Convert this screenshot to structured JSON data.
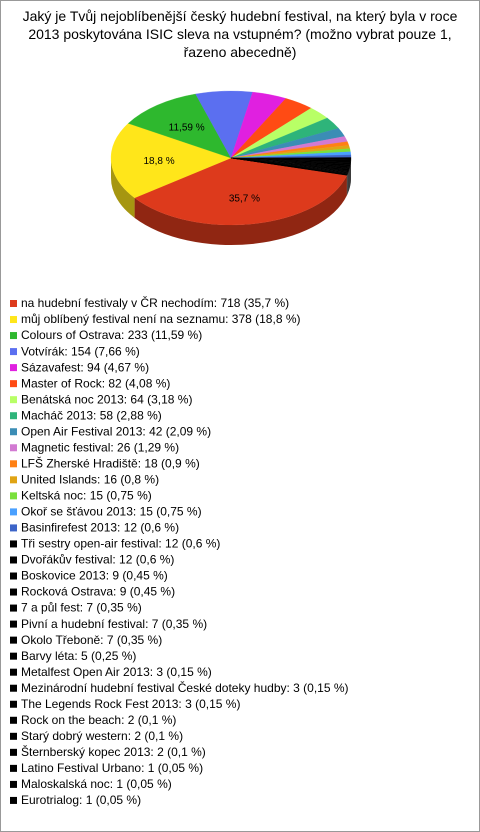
{
  "chart_data": {
    "type": "pie",
    "title": "Jaký je Tvůj nejoblíbenější český hudební festival, na který byla v roce 2013 poskytována ISIC sleva na vstupném? (možno vybrat pouze 1, řazeno abecedně)",
    "categories": [
      "na hudební festivaly v ČR nechodím: 718 (35,7 %)",
      "můj oblíbený festival není na seznamu: 378 (18,8 %)",
      "Colours of Ostrava: 233 (11,59 %)",
      "Votvírák: 154 (7,66 %)",
      "Sázavafest: 94 (4,67 %)",
      "Master of Rock: 82 (4,08 %)",
      "Benátská noc 2013: 64 (3,18 %)",
      "Macháč 2013: 58 (2,88 %)",
      "Open Air Festival 2013: 42 (2,09 %)",
      "Magnetic festival: 26 (1,29 %)",
      "LFŠ Zherské Hradiště: 18 (0,9 %)",
      "United Islands: 16 (0,8 %)",
      "Keltská noc: 15 (0,75 %)",
      "Okoř se šťávou 2013: 15 (0,75 %)",
      "Basinfirefest 2013: 12 (0,6 %)",
      "Tři sestry open-air festival: 12 (0,6 %)",
      "Dvořákův festival: 12 (0,6 %)",
      "Boskovice 2013: 9 (0,45 %)",
      "Rocková Ostrava: 9 (0,45 %)",
      "7 a půl fest: 7 (0,35 %)",
      "Pivní a hudební festival: 7 (0,35 %)",
      "Okolo Třeboně: 7 (0,35 %)",
      "Barvy léta: 5 (0,25 %)",
      "Metalfest Open Air 2013: 3 (0,15 %)",
      "Mezinárodní hudební festival České doteky hudby: 3 (0,15 %)",
      "The Legends Rock Fest 2013: 3 (0,15 %)",
      "Rock on the beach: 2 (0,1 %)",
      "Starý dobrý western: 2 (0,1 %)",
      "Šternberský kopec 2013: 2 (0,1 %)",
      "Latino Festival Urbano: 1 (0,05 %)",
      "Maloskalská noc: 1 (0,05 %)",
      "Eurotrialog: 1 (0,05 %)"
    ],
    "values": [
      35.7,
      18.8,
      11.59,
      7.66,
      4.67,
      4.08,
      3.18,
      2.88,
      2.09,
      1.29,
      0.9,
      0.8,
      0.75,
      0.75,
      0.6,
      0.6,
      0.6,
      0.45,
      0.45,
      0.35,
      0.35,
      0.35,
      0.25,
      0.15,
      0.15,
      0.15,
      0.1,
      0.1,
      0.1,
      0.05,
      0.05,
      0.05
    ],
    "value_labels": [
      "35,7 %",
      "18,8 %",
      "11,59 %",
      null,
      null,
      null,
      null,
      null,
      null,
      null,
      null,
      null,
      null,
      null,
      null,
      null,
      null,
      null,
      null,
      null,
      null,
      null,
      null,
      null,
      null,
      null,
      null,
      null,
      null,
      null,
      null,
      null
    ],
    "colors": [
      "#dd3a1c",
      "#ffe61a",
      "#2eb82e",
      "#5b6ff0",
      "#e020e0",
      "#ff4b14",
      "#b8ff66",
      "#2eb47a",
      "#3b8db5",
      "#d27ad2",
      "#ff8014",
      "#e0a414",
      "#7ae03c",
      "#4aa0ff",
      "#3c64c8",
      "#000000",
      "#000000",
      "#000000",
      "#000000",
      "#000000",
      "#000000",
      "#000000",
      "#000000",
      "#000000",
      "#000000",
      "#000000",
      "#000000",
      "#000000",
      "#000000",
      "#000000",
      "#000000",
      "#000000"
    ]
  }
}
